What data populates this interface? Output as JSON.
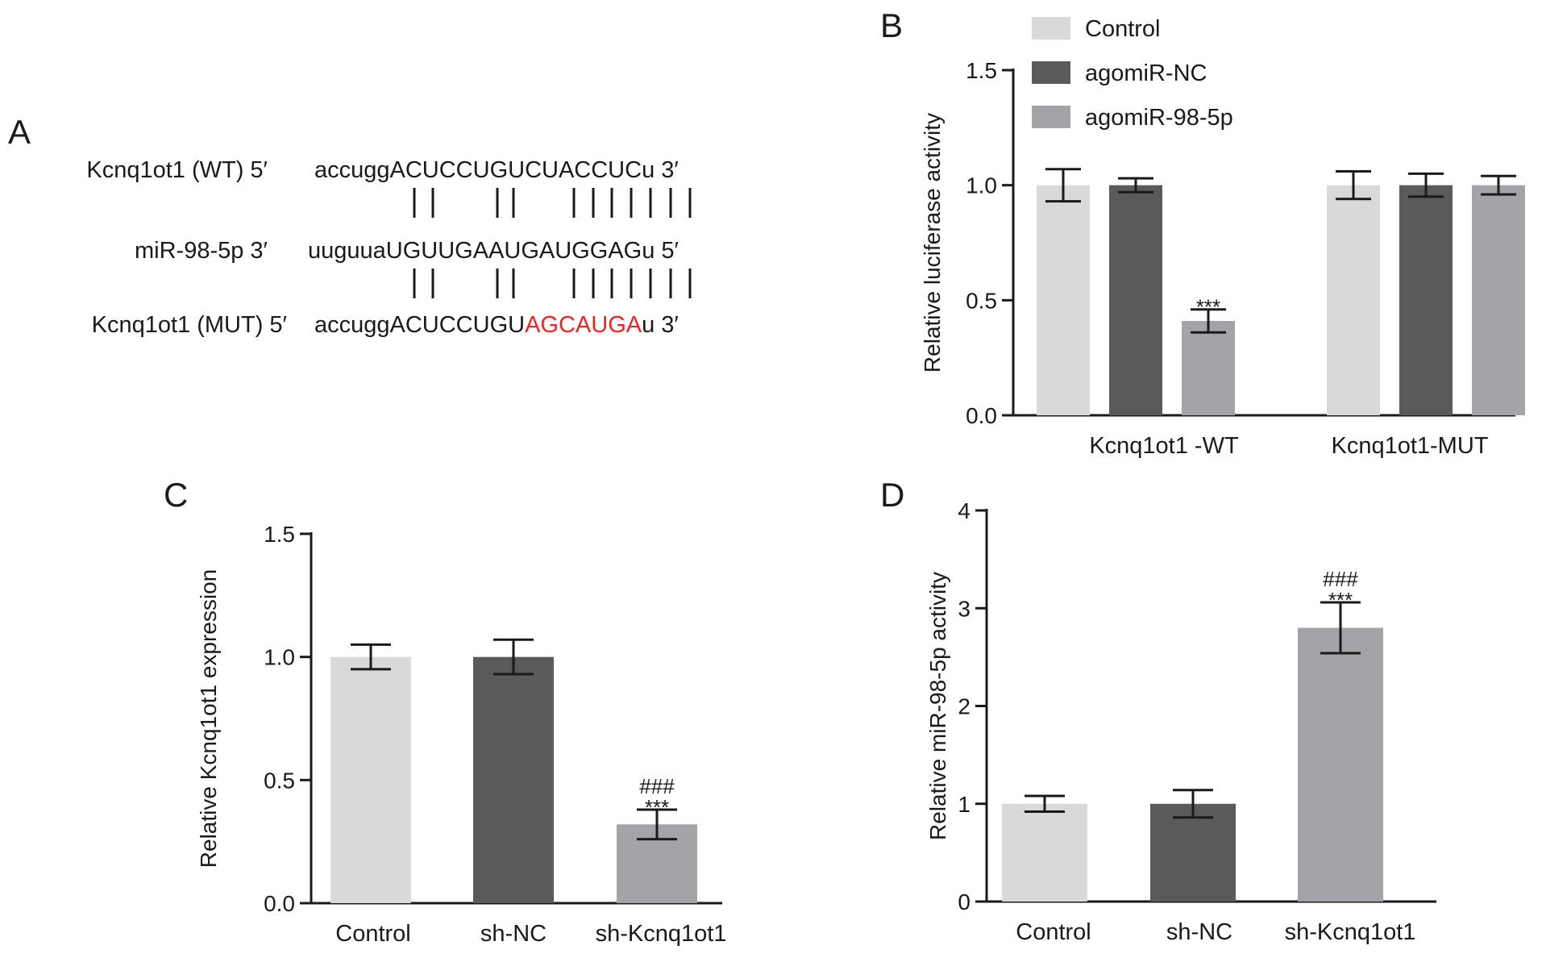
{
  "panel_labels": {
    "a": "A",
    "b": "B",
    "c": "C",
    "d": "D"
  },
  "sequence_panel": {
    "rows": [
      {
        "label": "Kcnq1ot1 (WT) 5′",
        "segments": [
          {
            "text": "accuggACUCCUGUCUACCUCu 3′",
            "color": "#1a1a1a"
          }
        ]
      },
      {
        "label": "miR-98-5p 3′",
        "segments": [
          {
            "text": "uuguuaUGUUGAAUGAUGGAGu 5′",
            "color": "#1a1a1a"
          }
        ]
      },
      {
        "label": "Kcnq1ot1 (MUT) 5′",
        "segments": [
          {
            "text": "accuggACUCCUGU",
            "color": "#1a1a1a"
          },
          {
            "text": "AGCAUGA",
            "color": "#ee2424"
          },
          {
            "text": "u 3′",
            "color": "#1a1a1a"
          }
        ]
      }
    ],
    "pairing_bar": "| |     | |     | | | | | | | |"
  },
  "colors": {
    "control": "#d9d9d9",
    "agomir_nc": "#5a5a5a",
    "agomir_98": "#a3a3a8",
    "mutation": "#ee2424",
    "axis": "#1a1a1a"
  },
  "chart_data": [
    {
      "panel": "B",
      "type": "bar",
      "ylabel": "Relative luciferase activity",
      "ylim": [
        0,
        1.5
      ],
      "yticks": [
        0.0,
        0.5,
        1.0,
        1.5
      ],
      "ytick_labels": [
        "0.0",
        "0.5",
        "1.0",
        "1.5"
      ],
      "categories": [
        "Kcnq1ot1 -WT",
        "Kcnq1ot1-MUT"
      ],
      "legend_position": "top-left",
      "series": [
        {
          "name": "Control",
          "color": "#d9d9d9",
          "values": [
            1.0,
            1.0
          ],
          "errors": [
            0.07,
            0.06
          ]
        },
        {
          "name": "agomiR-NC",
          "color": "#5a5a5a",
          "values": [
            1.0,
            1.0
          ],
          "errors": [
            0.03,
            0.05
          ]
        },
        {
          "name": "agomiR-98-5p",
          "color": "#a3a3a8",
          "values": [
            0.41,
            1.0
          ],
          "errors": [
            0.05,
            0.04
          ]
        }
      ],
      "annotations": [
        {
          "series": 2,
          "category": 0,
          "lines": [
            "***"
          ]
        }
      ]
    },
    {
      "panel": "C",
      "type": "bar",
      "ylabel": "Relative Kcnq1ot1 expression",
      "ylim": [
        0,
        1.5
      ],
      "yticks": [
        0.0,
        0.5,
        1.0,
        1.5
      ],
      "ytick_labels": [
        "0.0",
        "0.5",
        "1.0",
        "1.5"
      ],
      "categories": [
        "Control",
        "sh-NC",
        "sh-Kcnq1ot1"
      ],
      "colors": [
        "#d9d9d9",
        "#5a5a5a",
        "#a3a3a8"
      ],
      "values": [
        1.0,
        1.0,
        0.32
      ],
      "errors": [
        0.05,
        0.07,
        0.06
      ],
      "annotations": [
        {
          "category": 2,
          "lines": [
            "###",
            "***"
          ]
        }
      ]
    },
    {
      "panel": "D",
      "type": "bar",
      "ylabel": "Relative miR-98-5p activity",
      "ylim": [
        0,
        4
      ],
      "yticks": [
        0,
        1,
        2,
        3,
        4
      ],
      "ytick_labels": [
        "0",
        "1",
        "2",
        "3",
        "4"
      ],
      "categories": [
        "Control",
        "sh-NC",
        "sh-Kcnq1ot1"
      ],
      "colors": [
        "#d9d9d9",
        "#5a5a5a",
        "#a3a3a8"
      ],
      "values": [
        1.0,
        1.0,
        2.8
      ],
      "errors": [
        0.08,
        0.14,
        0.26
      ],
      "annotations": [
        {
          "category": 2,
          "lines": [
            "###",
            "***"
          ]
        }
      ]
    }
  ]
}
